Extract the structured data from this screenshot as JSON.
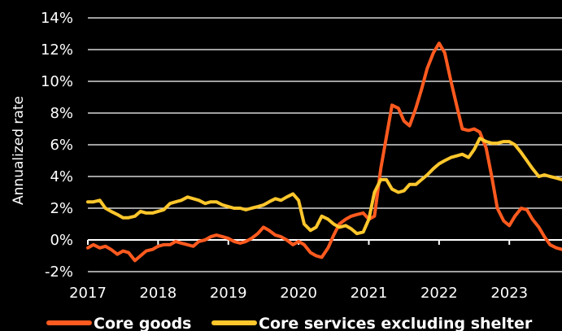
{
  "chart_data": {
    "type": "line",
    "ylabel": "Annualized rate",
    "ylim": [
      -2,
      14
    ],
    "xlim": [
      2017.0,
      2023.75
    ],
    "y_ticks": [
      -2,
      0,
      2,
      4,
      6,
      8,
      10,
      12,
      14
    ],
    "y_tick_labels": [
      "-2%",
      "0%",
      "2%",
      "4%",
      "6%",
      "8%",
      "10%",
      "12%",
      "14%"
    ],
    "x_ticks": [
      2017,
      2018,
      2019,
      2020,
      2021,
      2022,
      2023
    ],
    "x_tick_labels": [
      "2017",
      "2018",
      "2019",
      "2020",
      "2021",
      "2022",
      "2023"
    ],
    "grid": "horizontal",
    "legend_position": "bottom",
    "series": [
      {
        "name": "Core goods",
        "color": "#ff5a1f",
        "x": [
          2017.0,
          2017.08,
          2017.17,
          2017.25,
          2017.33,
          2017.42,
          2017.5,
          2017.58,
          2017.67,
          2017.75,
          2017.83,
          2017.92,
          2018.0,
          2018.08,
          2018.17,
          2018.25,
          2018.33,
          2018.42,
          2018.5,
          2018.58,
          2018.67,
          2018.75,
          2018.83,
          2018.92,
          2019.0,
          2019.08,
          2019.17,
          2019.25,
          2019.33,
          2019.42,
          2019.5,
          2019.58,
          2019.67,
          2019.75,
          2019.83,
          2019.92,
          2020.0,
          2020.08,
          2020.17,
          2020.25,
          2020.33,
          2020.42,
          2020.5,
          2020.58,
          2020.67,
          2020.75,
          2020.83,
          2020.92,
          2021.0,
          2021.08,
          2021.17,
          2021.25,
          2021.33,
          2021.42,
          2021.5,
          2021.58,
          2021.67,
          2021.75,
          2021.83,
          2021.92,
          2022.0,
          2022.08,
          2022.17,
          2022.25,
          2022.33,
          2022.42,
          2022.5,
          2022.58,
          2022.67,
          2022.75,
          2022.83,
          2022.92,
          2023.0,
          2023.08,
          2023.17,
          2023.25,
          2023.33,
          2023.42,
          2023.5,
          2023.58,
          2023.67,
          2023.75
        ],
        "values": [
          -0.5,
          -0.3,
          -0.5,
          -0.4,
          -0.6,
          -0.9,
          -0.7,
          -0.8,
          -1.3,
          -1.0,
          -0.7,
          -0.6,
          -0.4,
          -0.3,
          -0.3,
          -0.1,
          -0.2,
          -0.3,
          -0.4,
          -0.1,
          0.0,
          0.2,
          0.3,
          0.2,
          0.1,
          -0.1,
          -0.2,
          -0.1,
          0.1,
          0.4,
          0.8,
          0.6,
          0.3,
          0.2,
          0.0,
          -0.3,
          -0.1,
          -0.3,
          -0.8,
          -1.0,
          -1.1,
          -0.5,
          0.3,
          1.0,
          1.3,
          1.5,
          1.6,
          1.7,
          1.3,
          1.5,
          4.5,
          6.5,
          8.5,
          8.3,
          7.5,
          7.2,
          8.3,
          9.5,
          10.8,
          11.8,
          12.4,
          11.8,
          10.0,
          8.5,
          7.0,
          6.9,
          7.0,
          6.8,
          5.8,
          4.0,
          2.0,
          1.2,
          0.9,
          1.5,
          2.0,
          1.9,
          1.3,
          0.8,
          0.2,
          -0.3,
          -0.5,
          -0.6
        ]
      },
      {
        "name": "Core services excluding shelter",
        "color": "#ffc72c",
        "x": [
          2017.0,
          2017.08,
          2017.17,
          2017.25,
          2017.33,
          2017.42,
          2017.5,
          2017.58,
          2017.67,
          2017.75,
          2017.83,
          2017.92,
          2018.0,
          2018.08,
          2018.17,
          2018.25,
          2018.33,
          2018.42,
          2018.5,
          2018.58,
          2018.67,
          2018.75,
          2018.83,
          2018.92,
          2019.0,
          2019.08,
          2019.17,
          2019.25,
          2019.33,
          2019.42,
          2019.5,
          2019.58,
          2019.67,
          2019.75,
          2019.83,
          2019.92,
          2020.0,
          2020.08,
          2020.17,
          2020.25,
          2020.33,
          2020.42,
          2020.5,
          2020.58,
          2020.67,
          2020.75,
          2020.83,
          2020.92,
          2021.0,
          2021.08,
          2021.17,
          2021.25,
          2021.33,
          2021.42,
          2021.5,
          2021.58,
          2021.67,
          2021.75,
          2021.83,
          2021.92,
          2022.0,
          2022.08,
          2022.17,
          2022.25,
          2022.33,
          2022.42,
          2022.5,
          2022.58,
          2022.67,
          2022.75,
          2022.83,
          2022.92,
          2023.0,
          2023.08,
          2023.17,
          2023.25,
          2023.33,
          2023.42,
          2023.5,
          2023.58,
          2023.67,
          2023.75
        ],
        "values": [
          2.4,
          2.4,
          2.5,
          2.0,
          1.8,
          1.6,
          1.4,
          1.4,
          1.5,
          1.8,
          1.7,
          1.7,
          1.8,
          1.9,
          2.3,
          2.4,
          2.5,
          2.7,
          2.6,
          2.5,
          2.3,
          2.4,
          2.4,
          2.2,
          2.1,
          2.0,
          2.0,
          1.9,
          2.0,
          2.1,
          2.2,
          2.4,
          2.6,
          2.5,
          2.7,
          2.9,
          2.5,
          1.0,
          0.6,
          0.8,
          1.5,
          1.3,
          1.0,
          0.8,
          0.9,
          0.7,
          0.4,
          0.5,
          1.3,
          3.0,
          3.8,
          3.8,
          3.2,
          3.0,
          3.1,
          3.5,
          3.5,
          3.8,
          4.1,
          4.5,
          4.8,
          5.0,
          5.2,
          5.3,
          5.4,
          5.2,
          5.7,
          6.4,
          6.2,
          6.1,
          6.1,
          6.2,
          6.2,
          6.0,
          5.5,
          5.0,
          4.5,
          4.0,
          4.1,
          4.0,
          3.9,
          3.8
        ]
      }
    ]
  }
}
